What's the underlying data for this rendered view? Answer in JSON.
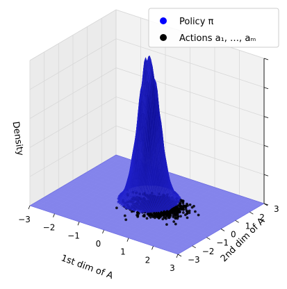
{
  "chart_data": {
    "type": "surface3d",
    "title": "",
    "xlabel": "1st dim of A",
    "ylabel": "2nd dim of A",
    "zlabel": "Density",
    "xlim": [
      -3,
      3
    ],
    "ylim": [
      -3,
      3
    ],
    "xticks": [
      "−3",
      "−2",
      "−1",
      "0",
      "1",
      "2",
      "3"
    ],
    "yticks": [
      "−3",
      "−2",
      "−1",
      "0",
      "1",
      "2",
      "3"
    ],
    "zticks_labeled": false,
    "grid": true,
    "legend": {
      "placement": "top-right",
      "entries": [
        {
          "label": "Policy π",
          "color": "#0000ff",
          "marker": "circle"
        },
        {
          "label": "Actions a₁, …, aₘ",
          "color": "#000000",
          "marker": "circle"
        }
      ]
    },
    "series": [
      {
        "kind": "density_surface",
        "color": "#0000ff",
        "distribution": "gaussian",
        "mean": [
          -0.1,
          0.3
        ],
        "std": [
          0.35,
          0.45
        ]
      },
      {
        "kind": "action_samples",
        "color": "#000000",
        "count": 1000,
        "mean": [
          0.4,
          0.1
        ],
        "std": [
          0.45,
          0.45
        ]
      }
    ]
  }
}
